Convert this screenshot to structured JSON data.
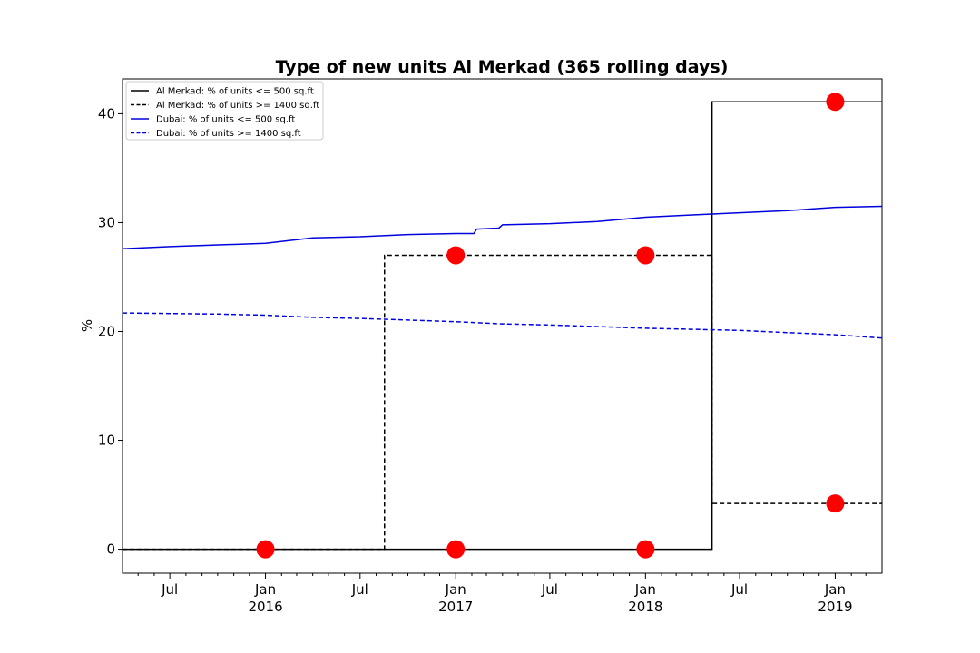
{
  "chart_data": {
    "type": "line",
    "title": "Type of new units Al Merkad (365 rolling days)",
    "xlabel": "",
    "ylabel": "%",
    "xlim": [
      "2015-04-01",
      "2019-04-01"
    ],
    "ylim": [
      -2.2,
      43.2
    ],
    "y_ticks": [
      0,
      10,
      20,
      30,
      40
    ],
    "x_major_ticks": [
      {
        "date": "2015-07-01",
        "label": "Jul",
        "sublabel": ""
      },
      {
        "date": "2016-01-01",
        "label": "Jan",
        "sublabel": "2016"
      },
      {
        "date": "2016-07-01",
        "label": "Jul",
        "sublabel": ""
      },
      {
        "date": "2017-01-01",
        "label": "Jan",
        "sublabel": "2017"
      },
      {
        "date": "2017-07-01",
        "label": "Jul",
        "sublabel": ""
      },
      {
        "date": "2018-01-01",
        "label": "Jan",
        "sublabel": "2018"
      },
      {
        "date": "2018-07-01",
        "label": "Jul",
        "sublabel": ""
      },
      {
        "date": "2019-01-01",
        "label": "Jan",
        "sublabel": "2019"
      }
    ],
    "grid": false,
    "legend_position": "top-left",
    "series": [
      {
        "name": "Al Merkad: % of units <= 500 sq.ft",
        "color": "#000000",
        "style": "solid",
        "step": true,
        "points": [
          {
            "x": "2015-04-01",
            "y": 0
          },
          {
            "x": "2018-05-09",
            "y": 0
          },
          {
            "x": "2018-05-09",
            "y": 41.1
          },
          {
            "x": "2019-04-01",
            "y": 41.1
          }
        ]
      },
      {
        "name": "Al Merkad: % of units >= 1400 sq.ft",
        "color": "#000000",
        "style": "dashed",
        "step": true,
        "points": [
          {
            "x": "2015-04-01",
            "y": 0
          },
          {
            "x": "2016-08-17",
            "y": 0
          },
          {
            "x": "2016-08-17",
            "y": 27
          },
          {
            "x": "2018-05-09",
            "y": 27
          },
          {
            "x": "2018-05-09",
            "y": 4.2
          },
          {
            "x": "2019-04-01",
            "y": 4.2
          }
        ]
      },
      {
        "name": "Dubai: % of units <= 500 sq.ft",
        "color": "#0000dd",
        "style": "solid",
        "step": false,
        "points": [
          {
            "x": "2015-04-01",
            "y": 27.6
          },
          {
            "x": "2015-07-01",
            "y": 27.8
          },
          {
            "x": "2016-01-01",
            "y": 28.1
          },
          {
            "x": "2016-04-01",
            "y": 28.6
          },
          {
            "x": "2016-07-01",
            "y": 28.7
          },
          {
            "x": "2016-10-01",
            "y": 28.9
          },
          {
            "x": "2017-01-01",
            "y": 29.0
          },
          {
            "x": "2017-02-05",
            "y": 29.0
          },
          {
            "x": "2017-02-10",
            "y": 29.4
          },
          {
            "x": "2017-03-25",
            "y": 29.5
          },
          {
            "x": "2017-04-01",
            "y": 29.8
          },
          {
            "x": "2017-07-01",
            "y": 29.9
          },
          {
            "x": "2017-10-01",
            "y": 30.1
          },
          {
            "x": "2018-01-01",
            "y": 30.5
          },
          {
            "x": "2018-04-01",
            "y": 30.7
          },
          {
            "x": "2018-07-01",
            "y": 30.9
          },
          {
            "x": "2018-10-01",
            "y": 31.1
          },
          {
            "x": "2019-01-01",
            "y": 31.4
          },
          {
            "x": "2019-04-01",
            "y": 31.5
          }
        ]
      },
      {
        "name": "Dubai: % of units >= 1400 sq.ft",
        "color": "#0000dd",
        "style": "dashed",
        "step": false,
        "points": [
          {
            "x": "2015-04-01",
            "y": 21.7
          },
          {
            "x": "2015-10-01",
            "y": 21.6
          },
          {
            "x": "2016-01-01",
            "y": 21.5
          },
          {
            "x": "2016-04-01",
            "y": 21.3
          },
          {
            "x": "2016-07-01",
            "y": 21.2
          },
          {
            "x": "2017-01-01",
            "y": 20.9
          },
          {
            "x": "2017-04-01",
            "y": 20.7
          },
          {
            "x": "2017-07-01",
            "y": 20.6
          },
          {
            "x": "2018-01-01",
            "y": 20.3
          },
          {
            "x": "2018-07-01",
            "y": 20.1
          },
          {
            "x": "2019-01-01",
            "y": 19.7
          },
          {
            "x": "2019-04-01",
            "y": 19.4
          }
        ]
      }
    ],
    "markers": {
      "color": "#ff0000",
      "points": [
        {
          "x": "2016-01-01",
          "y": 0
        },
        {
          "x": "2017-01-01",
          "y": 0
        },
        {
          "x": "2018-01-01",
          "y": 0
        },
        {
          "x": "2017-01-01",
          "y": 27
        },
        {
          "x": "2018-01-01",
          "y": 27
        },
        {
          "x": "2019-01-01",
          "y": 41.1
        },
        {
          "x": "2019-01-01",
          "y": 4.2
        }
      ]
    }
  }
}
